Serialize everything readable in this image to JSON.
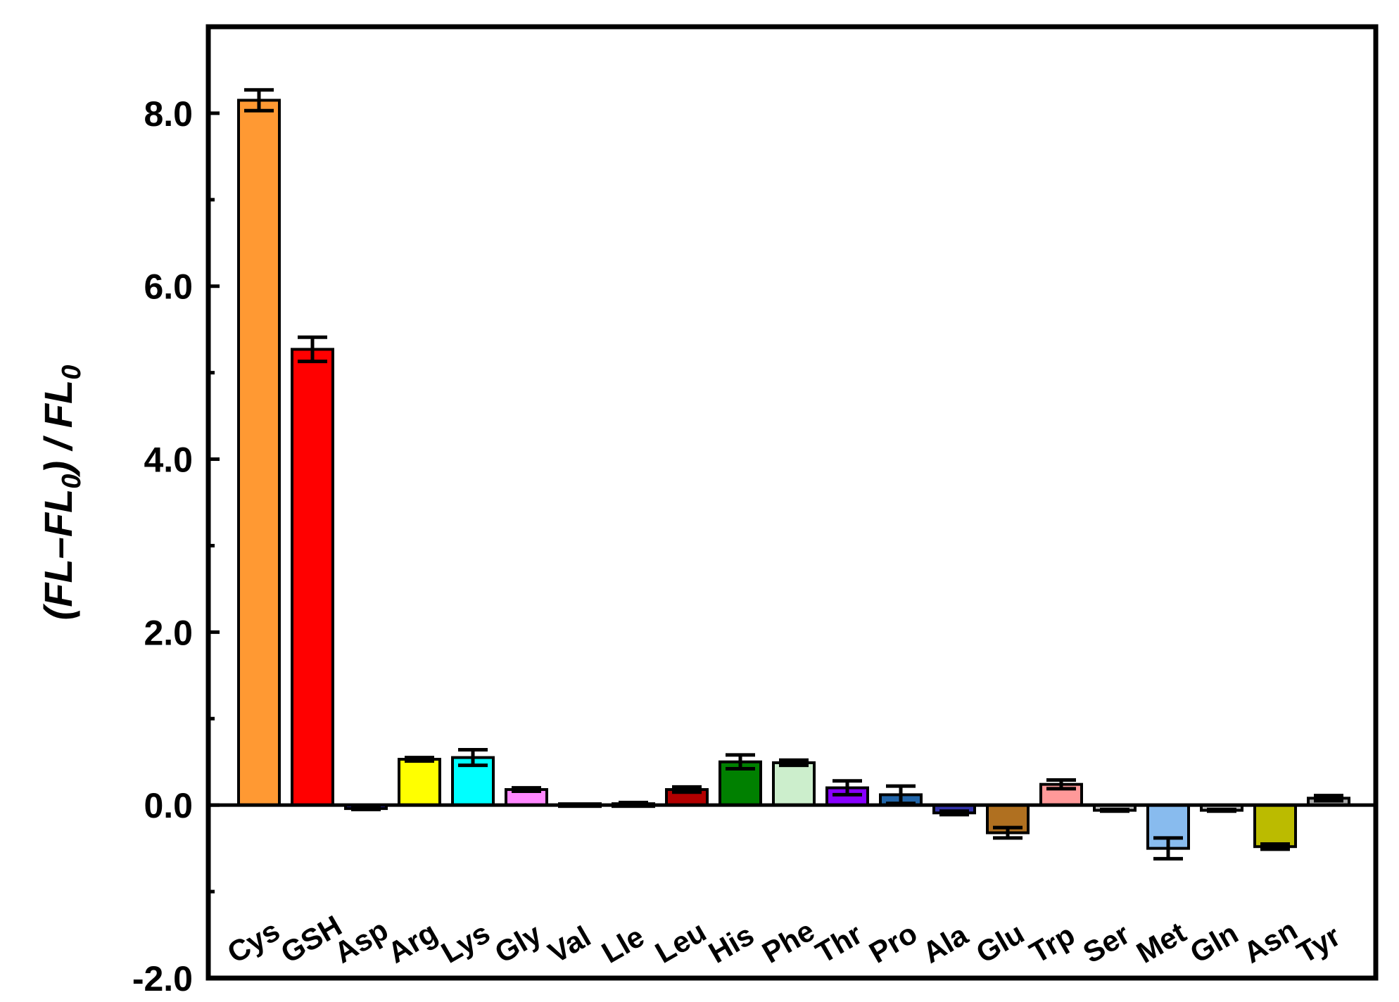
{
  "chart_data": {
    "type": "bar",
    "ylabel": {
      "open": "(",
      "fl1": "FL",
      "minus": "–",
      "fl2": "FL",
      "sub1": "0",
      "mid": ") / ",
      "fl3": "FL",
      "sub2": "0"
    },
    "xlabel": "",
    "ylim": [
      -2.0,
      9.0
    ],
    "yticks": [
      {
        "value": 8.0,
        "label": "8.0"
      },
      {
        "value": 6.0,
        "label": "6.0"
      },
      {
        "value": 4.0,
        "label": "4.0"
      },
      {
        "value": 2.0,
        "label": "2.0"
      },
      {
        "value": 0.0,
        "label": "0.0"
      },
      {
        "value": -2.0,
        "label": "-2.0"
      }
    ],
    "minor_ticks": [
      -1.0,
      1.0,
      3.0,
      5.0,
      7.0
    ],
    "categories": [
      "Cys",
      "GSH",
      "Asp",
      "Arg",
      "Lys",
      "Gly",
      "Val",
      "Lle",
      "Leu",
      "His",
      "Phe",
      "Thr",
      "Pro",
      "Ala",
      "Glu",
      "Trp",
      "Ser",
      "Met",
      "Gln",
      "Asn",
      "Tyr"
    ],
    "values": [
      8.15,
      5.27,
      -0.04,
      0.53,
      0.55,
      0.18,
      0.0,
      0.02,
      0.18,
      0.5,
      0.49,
      0.2,
      0.12,
      -0.09,
      -0.32,
      0.24,
      -0.06,
      -0.5,
      -0.06,
      -0.48,
      0.08
    ],
    "errors": [
      0.12,
      0.14,
      0.01,
      0.02,
      0.09,
      0.02,
      0.0,
      0.01,
      0.03,
      0.08,
      0.03,
      0.08,
      0.1,
      0.02,
      0.06,
      0.05,
      0.01,
      0.12,
      0.01,
      0.03,
      0.03
    ],
    "colors": [
      "#ff9933",
      "#ff0000",
      "#3a3aff",
      "#ffff00",
      "#00ffff",
      "#ff88ff",
      "#c0c0c0",
      "#d9d9d9",
      "#b30000",
      "#008000",
      "#cceecc",
      "#8800ff",
      "#2266aa",
      "#3333aa",
      "#b07020",
      "#ff9999",
      "#c0c0c0",
      "#88bbee",
      "#c0c0c0",
      "#bbbb00",
      "#aaaaaa"
    ]
  }
}
